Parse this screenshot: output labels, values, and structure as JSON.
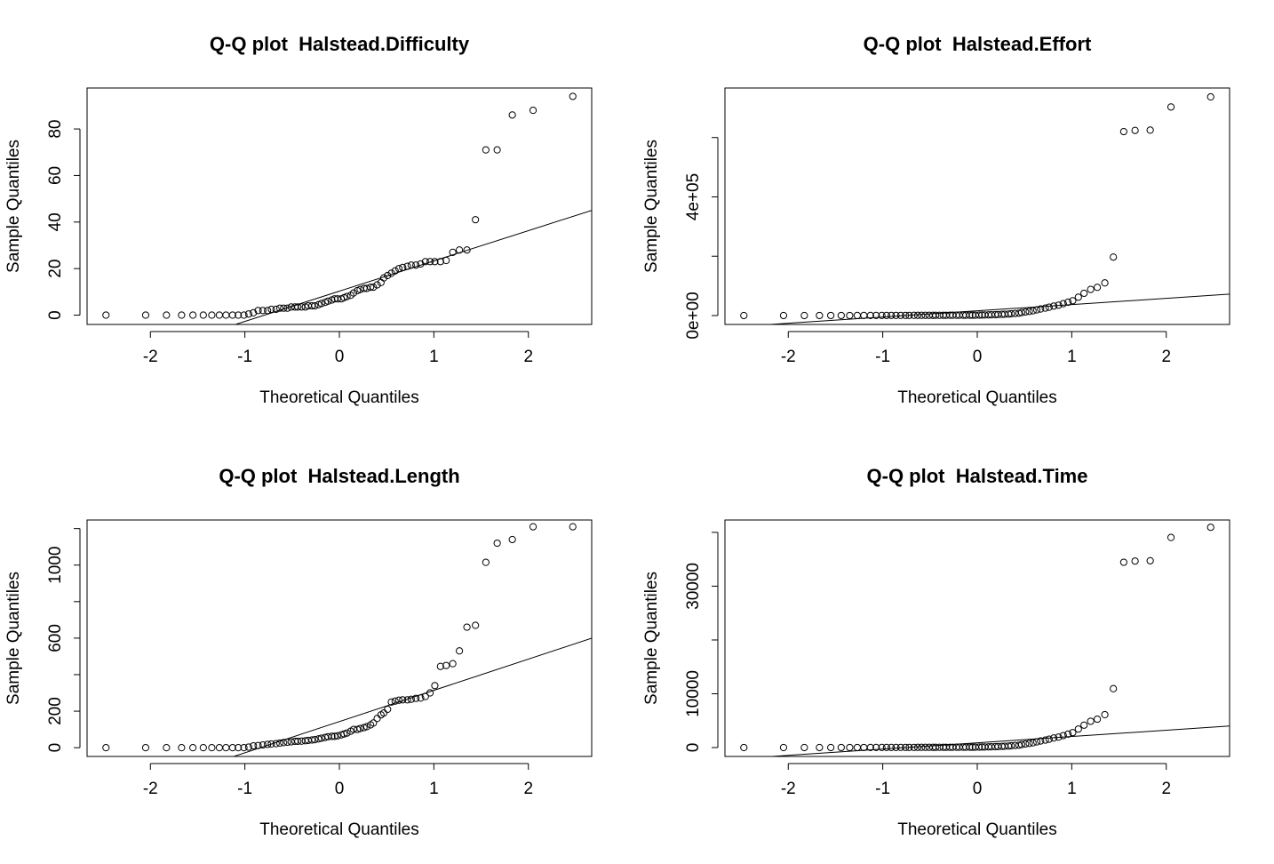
{
  "chart_data": [
    {
      "type": "scatter",
      "title": "Q-Q plot  Halstead.Difficulty",
      "xlabel": "Theoretical Quantiles",
      "ylabel": "Sample Quantiles",
      "x": [
        -2.47,
        -2.05,
        -1.83,
        -1.67,
        -1.55,
        -1.44,
        -1.35,
        -1.27,
        -1.2,
        -1.13,
        -1.07,
        -1.01,
        -0.96,
        -0.91,
        -0.86,
        -0.81,
        -0.76,
        -0.72,
        -0.67,
        -0.63,
        -0.59,
        -0.55,
        -0.51,
        -0.47,
        -0.44,
        -0.4,
        -0.36,
        -0.33,
        -0.29,
        -0.26,
        -0.22,
        -0.19,
        -0.15,
        -0.12,
        -0.08,
        -0.05,
        -0.02,
        0.02,
        0.05,
        0.08,
        0.12,
        0.15,
        0.19,
        0.22,
        0.26,
        0.29,
        0.33,
        0.36,
        0.4,
        0.44,
        0.47,
        0.51,
        0.55,
        0.59,
        0.63,
        0.67,
        0.72,
        0.76,
        0.81,
        0.86,
        0.91,
        0.96,
        1.01,
        1.07,
        1.13,
        1.2,
        1.27,
        1.35,
        1.44,
        1.55,
        1.67,
        1.83,
        2.05,
        2.47
      ],
      "series": [
        {
          "color": "#000000",
          "values": [
            0,
            0,
            0,
            0,
            0,
            0,
            0,
            0,
            0,
            0,
            0,
            0,
            0.5,
            1,
            2,
            2,
            2,
            2.5,
            2.5,
            3,
            3,
            3,
            3.5,
            3.5,
            3.5,
            3.5,
            3.5,
            4,
            4,
            4,
            4.5,
            5,
            5.5,
            6,
            6.5,
            7,
            7,
            7,
            7.5,
            8,
            8.5,
            9.5,
            10.5,
            11,
            11.5,
            11.5,
            12,
            12,
            13,
            14,
            16,
            17,
            18,
            19,
            20,
            20.5,
            21,
            21.5,
            21.5,
            22,
            23,
            23,
            23,
            23,
            23.5,
            27,
            28,
            28,
            41,
            71,
            71,
            86,
            88,
            94
          ]
        }
      ],
      "line": {
        "intercept": 10.3,
        "slope": 13,
        "color": "#000000"
      },
      "xlim": [
        -2.67,
        2.67
      ],
      "ylim": [
        -4,
        97.6
      ],
      "xticks": [
        -2,
        -1,
        0,
        1,
        2
      ],
      "yticks": [
        0,
        20,
        40,
        60,
        80
      ]
    },
    {
      "type": "scatter",
      "title": "Q-Q plot  Halstead.Effort",
      "xlabel": "Theoretical Quantiles",
      "ylabel": "Sample Quantiles",
      "x": [
        -2.47,
        -2.05,
        -1.83,
        -1.67,
        -1.55,
        -1.44,
        -1.35,
        -1.27,
        -1.2,
        -1.13,
        -1.07,
        -1.01,
        -0.96,
        -0.91,
        -0.86,
        -0.81,
        -0.76,
        -0.72,
        -0.67,
        -0.63,
        -0.59,
        -0.55,
        -0.51,
        -0.47,
        -0.44,
        -0.4,
        -0.36,
        -0.33,
        -0.29,
        -0.26,
        -0.22,
        -0.19,
        -0.15,
        -0.12,
        -0.08,
        -0.05,
        -0.02,
        0.02,
        0.05,
        0.08,
        0.12,
        0.15,
        0.19,
        0.22,
        0.26,
        0.29,
        0.33,
        0.36,
        0.4,
        0.44,
        0.47,
        0.51,
        0.55,
        0.59,
        0.63,
        0.67,
        0.72,
        0.76,
        0.81,
        0.86,
        0.91,
        0.96,
        1.01,
        1.07,
        1.13,
        1.2,
        1.27,
        1.35,
        1.44,
        1.55,
        1.67,
        1.83,
        2.05,
        2.47
      ],
      "series": [
        {
          "color": "#000000",
          "values": [
            0,
            35,
            70,
            105,
            140,
            175,
            210,
            245,
            280,
            315,
            350,
            385,
            420,
            455,
            490,
            525,
            560,
            595,
            630,
            665,
            700,
            735,
            770,
            805,
            840,
            875,
            910,
            945,
            980,
            1015,
            1050,
            1085,
            1120,
            1155,
            1190,
            1225,
            1260,
            1500,
            1800,
            2000,
            2300,
            2600,
            3000,
            3500,
            4000,
            4500,
            5000,
            6000,
            7000,
            8000,
            10000,
            12000,
            14000,
            16000,
            19000,
            22000,
            25000,
            28000,
            32000,
            35000,
            40000,
            45000,
            50000,
            62000,
            75000,
            88000,
            95000,
            110000,
            197000,
            620000,
            624000,
            625000,
            703000,
            737000
          ]
        }
      ],
      "line": {
        "intercept": 16000,
        "slope": 21000,
        "color": "#000000"
      },
      "xlim": [
        -2.67,
        2.67
      ],
      "ylim": [
        -30000,
        767000
      ],
      "xticks": [
        -2,
        -1,
        0,
        1,
        2
      ],
      "yticks": [
        {
          "value": 0,
          "label": "0e+00"
        },
        {
          "value": 200000,
          "label": null
        },
        {
          "value": 400000,
          "label": "4e+05"
        },
        {
          "value": 600000,
          "label": null
        }
      ]
    },
    {
      "type": "scatter",
      "title": "Q-Q plot  Halstead.Length",
      "xlabel": "Theoretical Quantiles",
      "ylabel": "Sample Quantiles",
      "x": [
        -2.47,
        -2.05,
        -1.83,
        -1.67,
        -1.55,
        -1.44,
        -1.35,
        -1.27,
        -1.2,
        -1.13,
        -1.07,
        -1.01,
        -0.96,
        -0.91,
        -0.86,
        -0.81,
        -0.76,
        -0.72,
        -0.67,
        -0.63,
        -0.59,
        -0.55,
        -0.51,
        -0.47,
        -0.44,
        -0.4,
        -0.36,
        -0.33,
        -0.29,
        -0.26,
        -0.22,
        -0.19,
        -0.15,
        -0.12,
        -0.08,
        -0.05,
        -0.02,
        0.02,
        0.05,
        0.08,
        0.12,
        0.15,
        0.19,
        0.22,
        0.26,
        0.29,
        0.33,
        0.36,
        0.4,
        0.44,
        0.47,
        0.51,
        0.55,
        0.59,
        0.63,
        0.67,
        0.72,
        0.76,
        0.81,
        0.86,
        0.91,
        0.96,
        1.01,
        1.07,
        1.13,
        1.2,
        1.27,
        1.35,
        1.44,
        1.55,
        1.67,
        1.83,
        2.05,
        2.47
      ],
      "series": [
        {
          "color": "#000000",
          "values": [
            0,
            0,
            0,
            0,
            0,
            0,
            0,
            0,
            0,
            0,
            0,
            0,
            3,
            10,
            12,
            15,
            18,
            20,
            22,
            25,
            28,
            30,
            32,
            35,
            35,
            36,
            38,
            40,
            42,
            44,
            48,
            52,
            56,
            60,
            62,
            62,
            65,
            70,
            75,
            80,
            90,
            100,
            100,
            105,
            110,
            115,
            125,
            135,
            160,
            180,
            190,
            210,
            250,
            255,
            260,
            262,
            262,
            265,
            270,
            272,
            280,
            300,
            340,
            445,
            450,
            460,
            530,
            660,
            670,
            1015,
            1120,
            1140,
            1210,
            1210
          ]
        }
      ],
      "line": {
        "intercept": 143,
        "slope": 171,
        "color": "#000000"
      },
      "xlim": [
        -2.67,
        2.67
      ],
      "ylim": [
        -48,
        1247
      ],
      "xticks": [
        -2,
        -1,
        0,
        1,
        2
      ],
      "yticks": [
        0,
        200,
        {
          "value": 400,
          "label": null
        },
        600,
        {
          "value": 800,
          "label": null
        },
        1000,
        {
          "value": 1200,
          "label": null
        }
      ]
    },
    {
      "type": "scatter",
      "title": "Q-Q plot  Halstead.Time",
      "xlabel": "Theoretical Quantiles",
      "ylabel": "Sample Quantiles",
      "x": [
        -2.47,
        -2.05,
        -1.83,
        -1.67,
        -1.55,
        -1.44,
        -1.35,
        -1.27,
        -1.2,
        -1.13,
        -1.07,
        -1.01,
        -0.96,
        -0.91,
        -0.86,
        -0.81,
        -0.76,
        -0.72,
        -0.67,
        -0.63,
        -0.59,
        -0.55,
        -0.51,
        -0.47,
        -0.44,
        -0.4,
        -0.36,
        -0.33,
        -0.29,
        -0.26,
        -0.22,
        -0.19,
        -0.15,
        -0.12,
        -0.08,
        -0.05,
        -0.02,
        0.02,
        0.05,
        0.08,
        0.12,
        0.15,
        0.19,
        0.22,
        0.26,
        0.29,
        0.33,
        0.36,
        0.4,
        0.44,
        0.47,
        0.51,
        0.55,
        0.59,
        0.63,
        0.67,
        0.72,
        0.76,
        0.81,
        0.86,
        0.91,
        0.96,
        1.01,
        1.07,
        1.13,
        1.2,
        1.27,
        1.35,
        1.44,
        1.55,
        1.67,
        1.83,
        2.05,
        2.47
      ],
      "series": [
        {
          "color": "#000000",
          "values": [
            0,
            2,
            4,
            6,
            8,
            10,
            12,
            14,
            16,
            18,
            20,
            22,
            24,
            26,
            28,
            30,
            32,
            34,
            36,
            38,
            40,
            42,
            44,
            46,
            48,
            50,
            52,
            54,
            56,
            58,
            60,
            62,
            64,
            66,
            68,
            70,
            72,
            83,
            100,
            111,
            128,
            144,
            167,
            194,
            222,
            250,
            278,
            333,
            389,
            444,
            556,
            667,
            778,
            889,
            1056,
            1222,
            1389,
            1556,
            1778,
            1944,
            2222,
            2500,
            2778,
            3444,
            4167,
            4889,
            5278,
            6111,
            10944,
            34444,
            34667,
            34722,
            39056,
            40944
          ]
        }
      ],
      "line": {
        "intercept": 889,
        "slope": 1167,
        "color": "#000000"
      },
      "xlim": [
        -2.67,
        2.67
      ],
      "ylim": [
        -1650,
        42300
      ],
      "xticks": [
        -2,
        -1,
        0,
        1,
        2
      ],
      "yticks": [
        0,
        10000,
        {
          "value": 20000,
          "label": null
        },
        30000,
        {
          "value": 40000,
          "label": null
        }
      ]
    }
  ]
}
